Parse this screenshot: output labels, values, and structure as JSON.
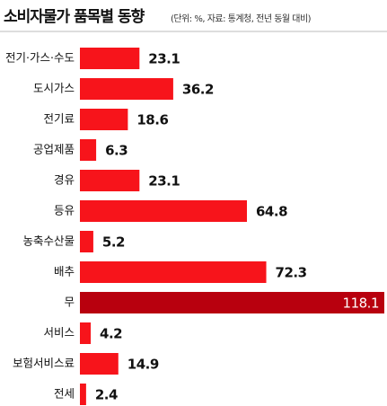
{
  "chart_data": {
    "type": "bar",
    "orientation": "horizontal",
    "title": "소비자물가 품목별 동향",
    "subtitle": "(단위: %, 자료: 통계청, 전년 동월 대비)",
    "categories": [
      "전기·가스·수도",
      "도시가스",
      "전기료",
      "공업제품",
      "경유",
      "등유",
      "농축수산물",
      "배추",
      "무",
      "서비스",
      "보험서비스료",
      "전세"
    ],
    "values": [
      23.1,
      36.2,
      18.6,
      6.3,
      23.1,
      64.8,
      5.2,
      72.3,
      118.1,
      4.2,
      14.9,
      2.4
    ],
    "colors": [
      "#f7141b",
      "#f7141b",
      "#f7141b",
      "#f7141b",
      "#f7141b",
      "#f7141b",
      "#f7141b",
      "#f7141b",
      "#b8000e",
      "#f7141b",
      "#f7141b",
      "#f7141b"
    ]
  }
}
